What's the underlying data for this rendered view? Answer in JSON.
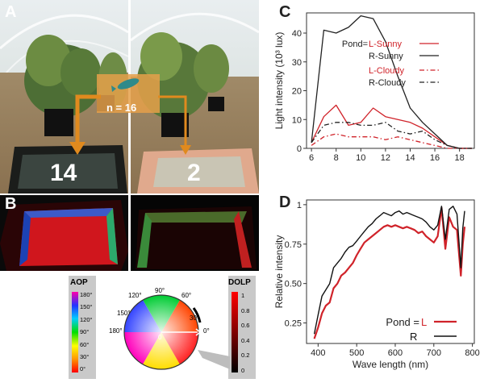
{
  "panels": {
    "a": {
      "letter": "A",
      "count_total": "n = 16",
      "left_count": "14",
      "right_count": "2"
    },
    "b": {
      "letter": "B"
    },
    "c": {
      "letter": "C"
    },
    "d": {
      "letter": "D"
    }
  },
  "legend_aop": {
    "title": "AOP",
    "ticks": [
      "180°",
      "150°",
      "120°",
      "90°",
      "60°",
      "30°",
      "0°"
    ]
  },
  "legend_dolp": {
    "title": "DOLP",
    "ticks": [
      "1",
      "0.8",
      "0.6",
      "0.4",
      "0.2",
      "0"
    ]
  },
  "wheel": {
    "labels": [
      "90°",
      "60°",
      "30°",
      "0°",
      "120°",
      "150°",
      "180°"
    ],
    "center": "0"
  },
  "colors": {
    "red": "#d0232a",
    "black": "#222222",
    "orange": "#e08a1e"
  },
  "chart_data": [
    {
      "type": "line",
      "xlabel": "",
      "ylabel": "Light intensity (10³ lux)",
      "xlim": [
        5.6,
        19.2
      ],
      "ylim": [
        0,
        47
      ],
      "xticks": [
        6,
        8,
        10,
        12,
        14,
        16,
        18
      ],
      "yticks": [
        0,
        10,
        20,
        30,
        40
      ],
      "x": [
        6,
        7,
        8,
        9,
        10,
        11,
        12,
        13,
        14,
        15,
        16,
        17,
        18,
        19
      ],
      "legend_prefix": "Pond=",
      "series": [
        {
          "name": "L-Sunny",
          "color": "#d0232a",
          "dash": "",
          "values": [
            2,
            11,
            15,
            8,
            9,
            14,
            11,
            10,
            9,
            7,
            4,
            1,
            0,
            0
          ]
        },
        {
          "name": "R-Sunny",
          "color": "#222222",
          "dash": "",
          "values": [
            2,
            41,
            40,
            42,
            46,
            45,
            37,
            25,
            14,
            9,
            5,
            1,
            0,
            0
          ]
        },
        {
          "name": "L-Cloudy",
          "color": "#d0232a",
          "dash": "6,3,1.5,3",
          "values": [
            1,
            4,
            5,
            4,
            4,
            4,
            3,
            4,
            3,
            2,
            1,
            0,
            0,
            0
          ]
        },
        {
          "name": "R-Cloudy",
          "color": "#222222",
          "dash": "6,3,1.5,3",
          "values": [
            2,
            8,
            9,
            9,
            8,
            8,
            9,
            6,
            5,
            6,
            3,
            1,
            0,
            0
          ]
        }
      ]
    },
    {
      "type": "line",
      "xlabel": "Wave length (nm)",
      "ylabel": "Relative intensity",
      "xlim": [
        370,
        805
      ],
      "ylim": [
        0.12,
        1.03
      ],
      "xticks": [
        400,
        500,
        600,
        700,
        800
      ],
      "yticks": [
        0.25,
        0.5,
        0.75,
        1
      ],
      "ytick_labels": [
        "0.25",
        "0.50",
        "0.75",
        "1"
      ],
      "x": [
        390,
        400,
        410,
        420,
        430,
        440,
        450,
        460,
        470,
        480,
        490,
        500,
        510,
        520,
        530,
        540,
        550,
        560,
        570,
        580,
        590,
        600,
        610,
        620,
        630,
        640,
        650,
        660,
        670,
        680,
        690,
        700,
        710,
        720,
        730,
        740,
        750,
        760,
        770,
        775,
        780
      ],
      "legend_prefix": "Pond = ",
      "series": [
        {
          "name": "L",
          "color": "#d0232a",
          "values": [
            0.15,
            0.22,
            0.31,
            0.36,
            0.38,
            0.47,
            0.5,
            0.55,
            0.57,
            0.6,
            0.63,
            0.68,
            0.72,
            0.76,
            0.78,
            0.8,
            0.82,
            0.84,
            0.86,
            0.87,
            0.86,
            0.87,
            0.86,
            0.85,
            0.86,
            0.85,
            0.84,
            0.82,
            0.83,
            0.8,
            0.78,
            0.76,
            0.8,
            0.98,
            0.72,
            0.92,
            0.86,
            0.84,
            0.55,
            0.75,
            0.86
          ]
        },
        {
          "name": "R",
          "color": "#111111",
          "values": [
            0.18,
            0.3,
            0.42,
            0.46,
            0.5,
            0.6,
            0.63,
            0.66,
            0.7,
            0.73,
            0.74,
            0.77,
            0.8,
            0.83,
            0.86,
            0.88,
            0.91,
            0.93,
            0.95,
            0.94,
            0.93,
            0.95,
            0.96,
            0.94,
            0.95,
            0.94,
            0.93,
            0.92,
            0.91,
            0.89,
            0.86,
            0.84,
            0.87,
            0.99,
            0.78,
            0.97,
            0.99,
            0.94,
            0.6,
            0.85,
            0.96
          ]
        }
      ]
    }
  ]
}
